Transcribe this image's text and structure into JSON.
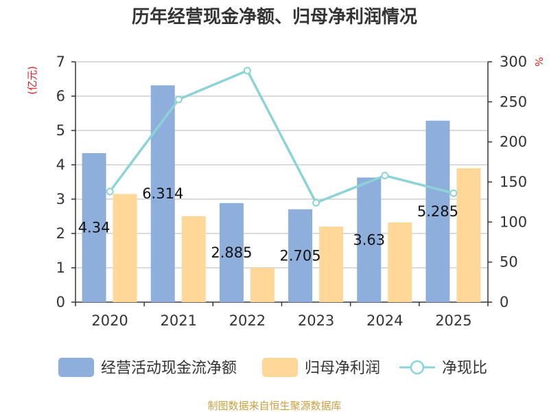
{
  "chart_data": {
    "type": "bar",
    "title": "历年经营现金净额、归母净利润情况",
    "categories": [
      "2020",
      "2021",
      "2022",
      "2023",
      "2024",
      "2025"
    ],
    "left_axis": {
      "unit": "(亿元)",
      "ylim": [
        0,
        7
      ],
      "ticks": [
        0,
        1,
        2,
        3,
        4,
        5,
        6,
        7
      ]
    },
    "right_axis": {
      "unit": "%",
      "ylim": [
        0,
        300
      ],
      "ticks": [
        0,
        50,
        100,
        150,
        200,
        250,
        300
      ]
    },
    "series": [
      {
        "name": "经营活动现金流净额",
        "kind": "bar",
        "axis": "left",
        "color": "#8eaedc",
        "values": [
          4.34,
          6.314,
          2.885,
          2.705,
          3.63,
          5.285
        ],
        "labels": [
          "4.34",
          "6.314",
          "2.885",
          "2.705",
          "3.63",
          "5.285"
        ]
      },
      {
        "name": "归母净利润",
        "kind": "bar",
        "axis": "left",
        "color": "#ffd899",
        "values": [
          3.15,
          2.5,
          1.0,
          2.2,
          2.32,
          3.9
        ]
      },
      {
        "name": "净现比",
        "kind": "line",
        "axis": "right",
        "color": "#8cd3d8",
        "values": [
          138,
          253,
          289,
          124,
          158,
          136
        ]
      }
    ],
    "grid": true,
    "legend_position": "bottom",
    "source": "制图数据来自恒生聚源数据库"
  }
}
